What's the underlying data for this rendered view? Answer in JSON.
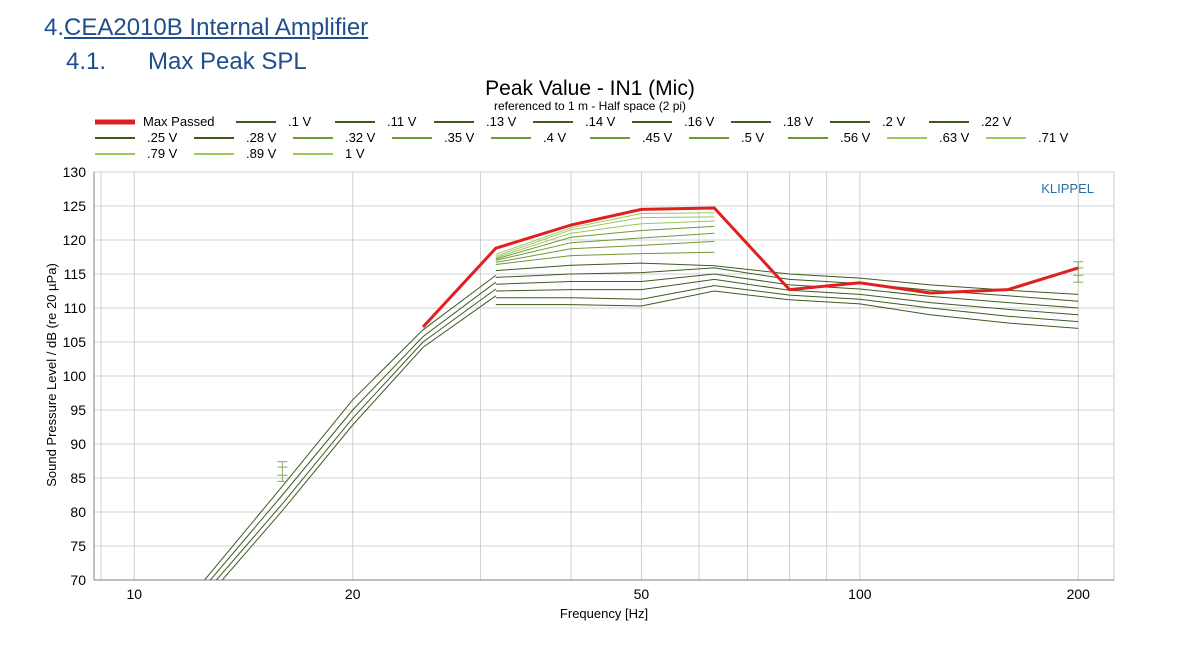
{
  "section": {
    "number": "4.",
    "title": "CEA2010B Internal Amplifier"
  },
  "subsection": {
    "number": "4.1.",
    "title": "Max Peak SPL"
  },
  "chart_data": {
    "type": "line",
    "title": "Peak Value - IN1 (Mic)",
    "subtitle": "referenced to 1 m - Half space (2 pi)",
    "watermark": "KLIPPEL",
    "xlabel": "Frequency [Hz]",
    "ylabel": "Sound Pressure Level / dB (re 20 µPa)",
    "xscale": "log",
    "xlim": [
      8.8,
      224
    ],
    "ylim": [
      70,
      130
    ],
    "x_ticks": [
      10,
      20,
      50,
      100,
      200
    ],
    "x_tick_labels": [
      "10",
      "20",
      "50",
      "100",
      "200"
    ],
    "y_ticks": [
      70,
      75,
      80,
      85,
      90,
      95,
      100,
      105,
      110,
      115,
      120,
      125,
      130
    ],
    "grid": true,
    "legend_position": "top",
    "colors": {
      "max_passed": "#e02020",
      "dark_green": "#3f5b1f",
      "mid_green": "#6e9a35",
      "light_green": "#9ac85a",
      "grid": "#d0d0d0",
      "header": "#1f4e8c",
      "watermark": "#2a6fa0"
    },
    "legend": [
      ".1 V",
      ".11 V",
      ".13 V",
      ".14 V",
      ".16 V",
      ".18 V",
      ".2 V",
      ".22 V",
      ".25 V",
      ".28 V",
      ".32 V",
      ".35 V",
      ".4 V",
      ".45 V",
      ".5 V",
      ".56 V",
      ".63 V",
      ".71 V",
      ".79 V",
      ".89 V",
      "1 V"
    ],
    "max_passed": {
      "name": "Max Passed",
      "x": [
        25,
        31.5,
        40,
        50,
        63,
        80,
        100,
        125,
        160,
        200
      ],
      "y": [
        107.2,
        118.8,
        122.2,
        124.5,
        124.7,
        112.7,
        113.7,
        112.2,
        112.7,
        115.9
      ]
    },
    "voltage_curves": {
      "x_low": [
        12.5,
        16,
        20,
        25,
        31.5
      ],
      "low_curves": [
        [
          70,
          83.8,
          96.5,
          106.8,
          114.8
        ],
        [
          69,
          82.5,
          95.0,
          105.8,
          113.8
        ],
        [
          68,
          81.2,
          93.8,
          105.0,
          112.8
        ],
        [
          67,
          80.2,
          92.8,
          104.2,
          111.8
        ]
      ],
      "x_high": [
        31.5,
        40,
        50,
        63,
        80,
        100,
        125,
        160,
        200
      ],
      "high_curves": [
        [
          110.5,
          110.5,
          110.3,
          112.5,
          111.2,
          110.6,
          109.0,
          107.8,
          107.0
        ],
        [
          111.5,
          111.5,
          111.3,
          113.3,
          111.9,
          111.3,
          110.0,
          108.8,
          108.0
        ],
        [
          112.5,
          112.7,
          112.7,
          114.2,
          112.6,
          112.0,
          110.8,
          109.8,
          109.0
        ],
        [
          113.5,
          113.9,
          113.9,
          115.0,
          113.4,
          112.8,
          111.7,
          110.8,
          110.0
        ],
        [
          114.5,
          115.0,
          115.2,
          115.9,
          114.2,
          113.6,
          112.6,
          111.8,
          111.0
        ],
        [
          115.5,
          116.3,
          116.6,
          116.2,
          115.0,
          114.4,
          113.4,
          112.6,
          112.0
        ],
        [
          116.4,
          117.7,
          118.0,
          118.2
        ],
        [
          116.7,
          118.7,
          119.2,
          119.8
        ],
        [
          117.0,
          119.6,
          120.3,
          121.0
        ],
        [
          117.2,
          120.4,
          121.4,
          122.0
        ],
        [
          117.4,
          121.0,
          122.4,
          122.8
        ],
        [
          117.6,
          121.5,
          123.3,
          123.4
        ],
        [
          117.9,
          121.8,
          123.9,
          124.0
        ]
      ],
      "markers": [
        {
          "x": 16,
          "y": [
            84.5,
            85.4,
            86.6,
            87.4
          ]
        },
        {
          "x": 200,
          "y": [
            113.8,
            114.8,
            115.9,
            116.8
          ]
        }
      ]
    }
  }
}
